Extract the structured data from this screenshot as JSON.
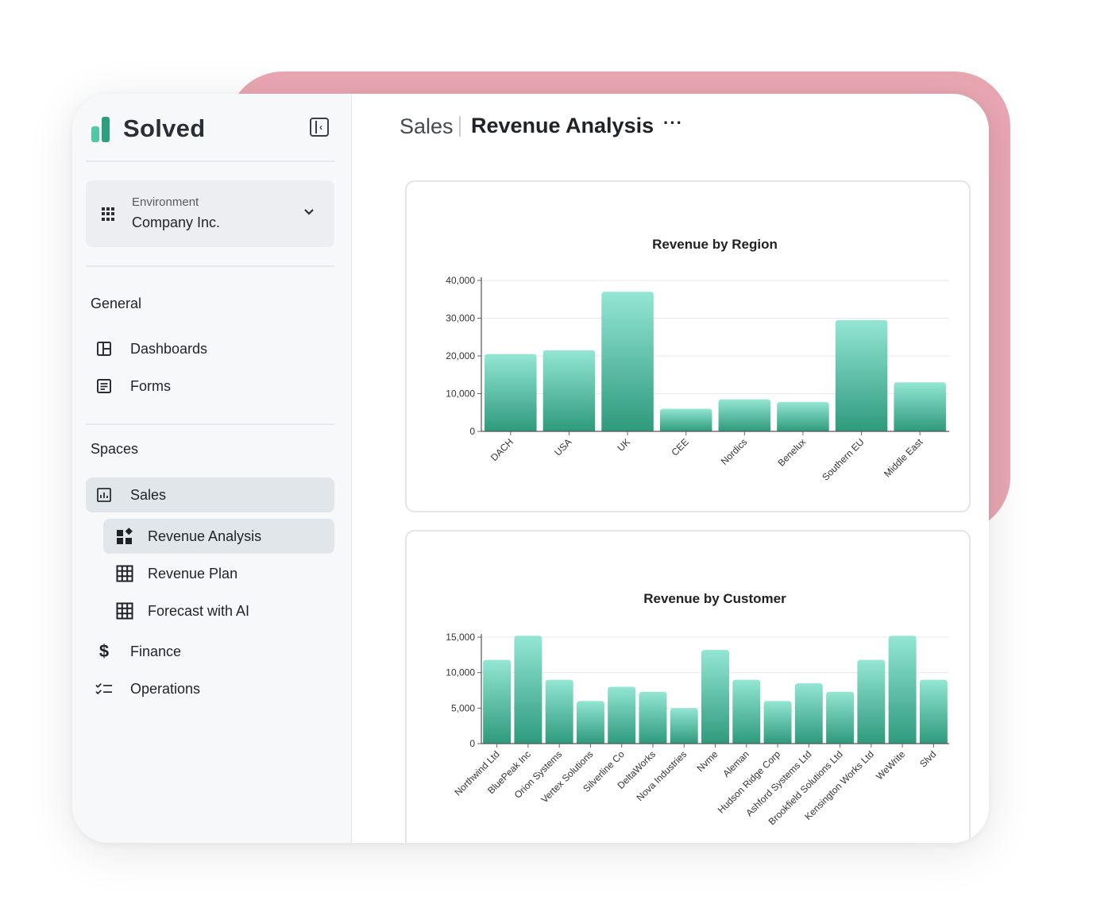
{
  "brand": {
    "name": "Solved"
  },
  "environment": {
    "label": "Environment",
    "value": "Company Inc."
  },
  "sidebar": {
    "general_title": "General",
    "general_items": [
      {
        "label": "Dashboards",
        "icon": "dashboard-icon"
      },
      {
        "label": "Forms",
        "icon": "form-icon"
      }
    ],
    "spaces_title": "Spaces",
    "spaces_items": [
      {
        "label": "Sales",
        "icon": "bar-chart-icon",
        "active": true
      },
      {
        "label": "Revenue Analysis",
        "icon": "widgets-icon",
        "active": true
      },
      {
        "label": "Revenue Plan",
        "icon": "table-icon"
      },
      {
        "label": "Forecast with AI",
        "icon": "table-icon"
      },
      {
        "label": "Finance",
        "icon": "dollar-icon"
      },
      {
        "label": "Operations",
        "icon": "checklist-icon"
      }
    ]
  },
  "header": {
    "breadcrumb": "Sales",
    "title": "Revenue Analysis",
    "more": "···"
  },
  "colors": {
    "bar_top": "#93e6d3",
    "bar_bottom": "#2e9a7c",
    "accent_pink": "#e9a7b2"
  },
  "chart_data": [
    {
      "type": "bar",
      "title": "Revenue by Region",
      "categories": [
        "DACH",
        "USA",
        "UK",
        "CEE",
        "Nordics",
        "Benelux",
        "Southern EU",
        "Middle East"
      ],
      "values": [
        20500,
        21500,
        37000,
        6000,
        8500,
        7800,
        29500,
        13000
      ],
      "ylim": [
        0,
        40000
      ],
      "yticks": [
        "0",
        "10,000",
        "20,000",
        "30,000",
        "40,000"
      ],
      "grid": true
    },
    {
      "type": "bar",
      "title": "Revenue by Customer",
      "categories": [
        "Northwind Ltd",
        "BluePeak Inc",
        "Orion Systems",
        "Vertex Solutions",
        "Silverline Co",
        "DeltaWorks",
        "Nova Industries",
        "Nvme",
        "Aleman",
        "Hudson Ridge Corp",
        "Ashford Systems Ltd",
        "Brookfield Solutions Ltd",
        "Kensington Works Ltd",
        "WeWrite",
        "Slvd"
      ],
      "values": [
        11800,
        15200,
        9000,
        6000,
        8000,
        7300,
        5000,
        13200,
        9000,
        6000,
        8500,
        7300,
        11800,
        15200,
        9000
      ],
      "ylim": [
        0,
        15000
      ],
      "yticks": [
        "0",
        "5,000",
        "10,000",
        "15,000"
      ],
      "grid": true
    }
  ]
}
